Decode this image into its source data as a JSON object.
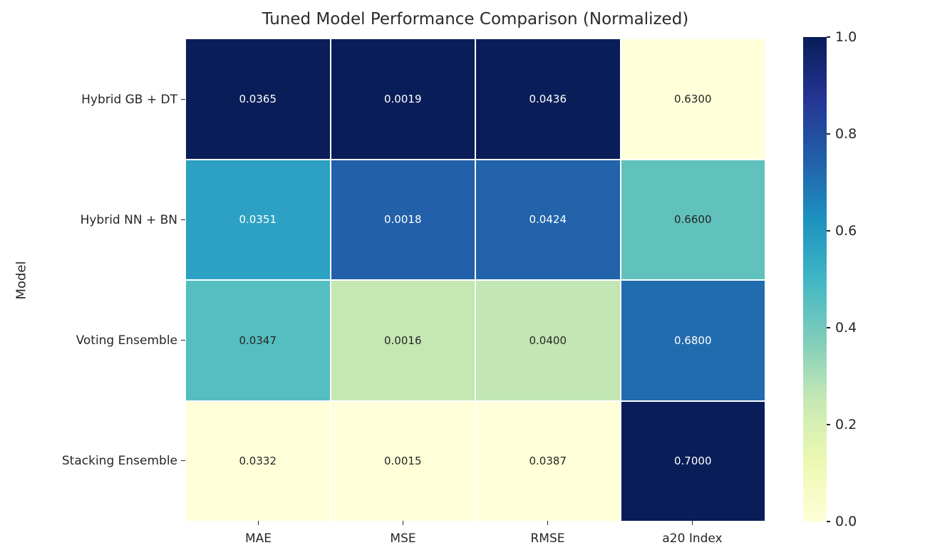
{
  "figure": {
    "title": "Tuned Model Performance Comparison (Normalized)",
    "ylabel": "Model",
    "background_color": "#ffffff",
    "gridline_color": "#ffffff",
    "tick_color": "#262626"
  },
  "chart_data": {
    "type": "heatmap",
    "title": "Tuned Model Performance Comparison (Normalized)",
    "xlabel": "",
    "ylabel": "Model",
    "columns": [
      "MAE",
      "MSE",
      "RMSE",
      "a20 Index"
    ],
    "rows": [
      "Hybrid GB + DT",
      "Hybrid NN + BN",
      "Voting Ensemble",
      "Stacking Ensemble"
    ],
    "values": [
      [
        0.0365,
        0.0019,
        0.0436,
        0.63
      ],
      [
        0.0351,
        0.0018,
        0.0424,
        0.66
      ],
      [
        0.0347,
        0.0016,
        0.04,
        0.68
      ],
      [
        0.0332,
        0.0015,
        0.0387,
        0.7
      ]
    ],
    "cell_labels": [
      [
        "0.0365",
        "0.0019",
        "0.0436",
        "0.6300"
      ],
      [
        "0.0351",
        "0.0018",
        "0.0424",
        "0.6600"
      ],
      [
        "0.0347",
        "0.0016",
        "0.0400",
        "0.6800"
      ],
      [
        "0.0332",
        "0.0015",
        "0.0387",
        "0.7000"
      ]
    ],
    "normalized_values": [
      [
        1.0,
        1.0,
        1.0,
        0.0
      ],
      [
        0.576,
        0.75,
        0.755,
        0.429
      ],
      [
        0.455,
        0.25,
        0.265,
        0.714
      ],
      [
        0.0,
        0.0,
        0.0,
        1.0
      ]
    ],
    "cell_colors": [
      [
        "#091e58",
        "#091e58",
        "#091e58",
        "#ffffd9"
      ],
      [
        "#2da1c3",
        "#2261a9",
        "#2263aa",
        "#60c1bd"
      ],
      [
        "#54bec0",
        "#c4e7b4",
        "#c2e6b4",
        "#216cae"
      ],
      [
        "#ffffd9",
        "#ffffd9",
        "#ffffd9",
        "#091e58"
      ]
    ],
    "cell_text_colors": [
      [
        "#ffffff",
        "#ffffff",
        "#ffffff",
        "#262626"
      ],
      [
        "#ffffff",
        "#ffffff",
        "#ffffff",
        "#262626"
      ],
      [
        "#262626",
        "#262626",
        "#262626",
        "#ffffff"
      ],
      [
        "#262626",
        "#262626",
        "#262626",
        "#ffffff"
      ]
    ],
    "colormap": {
      "name": "YlGnBu",
      "stops": [
        {
          "pos": 0.0,
          "color": "#ffffd9"
        },
        {
          "pos": 0.125,
          "color": "#edf8b1"
        },
        {
          "pos": 0.25,
          "color": "#c7e9b4"
        },
        {
          "pos": 0.375,
          "color": "#7fcdbb"
        },
        {
          "pos": 0.5,
          "color": "#41b6c4"
        },
        {
          "pos": 0.625,
          "color": "#1d91c0"
        },
        {
          "pos": 0.75,
          "color": "#225ea8"
        },
        {
          "pos": 0.875,
          "color": "#253494"
        },
        {
          "pos": 1.0,
          "color": "#081d58"
        }
      ]
    },
    "colorbar": {
      "min": 0.0,
      "max": 1.0,
      "ticks": [
        1.0,
        0.8,
        0.6,
        0.4,
        0.2,
        0.0
      ],
      "tick_labels": [
        "1.0",
        "0.8",
        "0.6",
        "0.4",
        "0.2",
        "0.0"
      ],
      "position": "right"
    },
    "layout": {
      "grid_on": false,
      "annotated": true
    }
  }
}
